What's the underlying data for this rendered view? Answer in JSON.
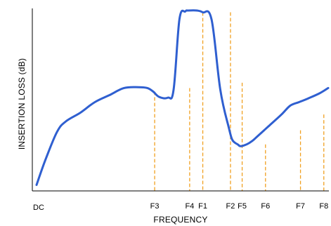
{
  "chart_data": {
    "type": "line",
    "title": "",
    "xlabel": "FREQUENCY",
    "ylabel": "INSERTION LOSS (dB)",
    "xlim": [
      0,
      100
    ],
    "ylim": [
      0,
      100
    ],
    "grid": false,
    "legend": "none",
    "series": [
      {
        "color": "#2f5fd0",
        "x": [
          0,
          3,
          7,
          10,
          15,
          20,
          25,
          30,
          35,
          38,
          40,
          42,
          45,
          47,
          49,
          51,
          52,
          55,
          57,
          60,
          63,
          66,
          67,
          68,
          69,
          70,
          72,
          74,
          76,
          78,
          80,
          84,
          87,
          90,
          93,
          97,
          100
        ],
        "y": [
          1,
          15,
          31,
          37,
          42,
          48,
          52,
          56,
          56.5,
          56,
          54,
          51,
          50.5,
          55,
          95,
          99.5,
          100,
          100,
          99,
          95,
          55,
          33,
          27,
          25,
          24,
          23,
          24,
          26,
          29,
          32,
          35,
          41,
          46,
          48,
          50,
          53,
          56
        ]
      }
    ],
    "markers": [
      {
        "label": "F3",
        "x": 40.5,
        "y": 54
      },
      {
        "label": "F4",
        "x": 52.5,
        "y": 56
      },
      {
        "label": "F1",
        "x": 57,
        "y": 99
      },
      {
        "label": "F2",
        "x": 66.5,
        "y": 99
      },
      {
        "label": "F5",
        "x": 70.5,
        "y": 59
      },
      {
        "label": "F6",
        "x": 78.5,
        "y": 24
      },
      {
        "label": "F7",
        "x": 90.5,
        "y": 32
      },
      {
        "label": "F8",
        "x": 98.5,
        "y": 41
      }
    ],
    "x_origin_label": "DC",
    "colors": {
      "curve": "#2f5fd0",
      "markers": "#f0a020",
      "axes": "#000000"
    }
  }
}
